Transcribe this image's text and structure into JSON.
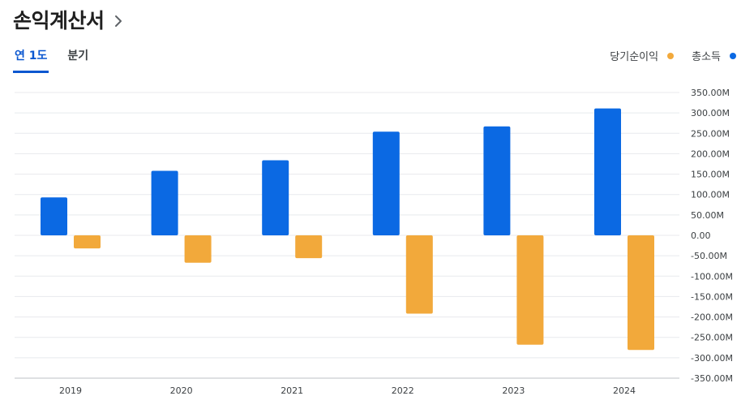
{
  "header": {
    "title": "손익계산서"
  },
  "tabs": [
    {
      "label": "연 1도",
      "active": true
    },
    {
      "label": "분기",
      "active": false
    }
  ],
  "legend": [
    {
      "label": "당기순이익",
      "color": "#f2a93b"
    },
    {
      "label": "총소득",
      "color": "#0b69e3"
    }
  ],
  "chart_data": {
    "type": "bar",
    "title": "",
    "xlabel": "",
    "ylabel": "",
    "categories": [
      "2019",
      "2020",
      "2021",
      "2022",
      "2023",
      "2024"
    ],
    "series": [
      {
        "name": "총소득",
        "color": "#0b69e3",
        "values": [
          93,
          158,
          184,
          254,
          267,
          311
        ]
      },
      {
        "name": "당기순이익",
        "color": "#f2a93b",
        "values": [
          -32,
          -67,
          -56,
          -192,
          -268,
          -281
        ]
      }
    ],
    "ylim": [
      -350,
      350
    ],
    "yticks": [
      350,
      300,
      250,
      200,
      150,
      100,
      50,
      0,
      -50,
      -100,
      -150,
      -200,
      -250,
      -300,
      -350
    ],
    "ytick_labels": [
      "350.00M",
      "300.00M",
      "250.00M",
      "200.00M",
      "150.00M",
      "100.00M",
      "50.00M",
      "0.00",
      "-50.00M",
      "-100.00M",
      "-150.00M",
      "-200.00M",
      "-250.00M",
      "-300.00M",
      "-350.00M"
    ],
    "y_axis_position": "right",
    "grid": true
  }
}
